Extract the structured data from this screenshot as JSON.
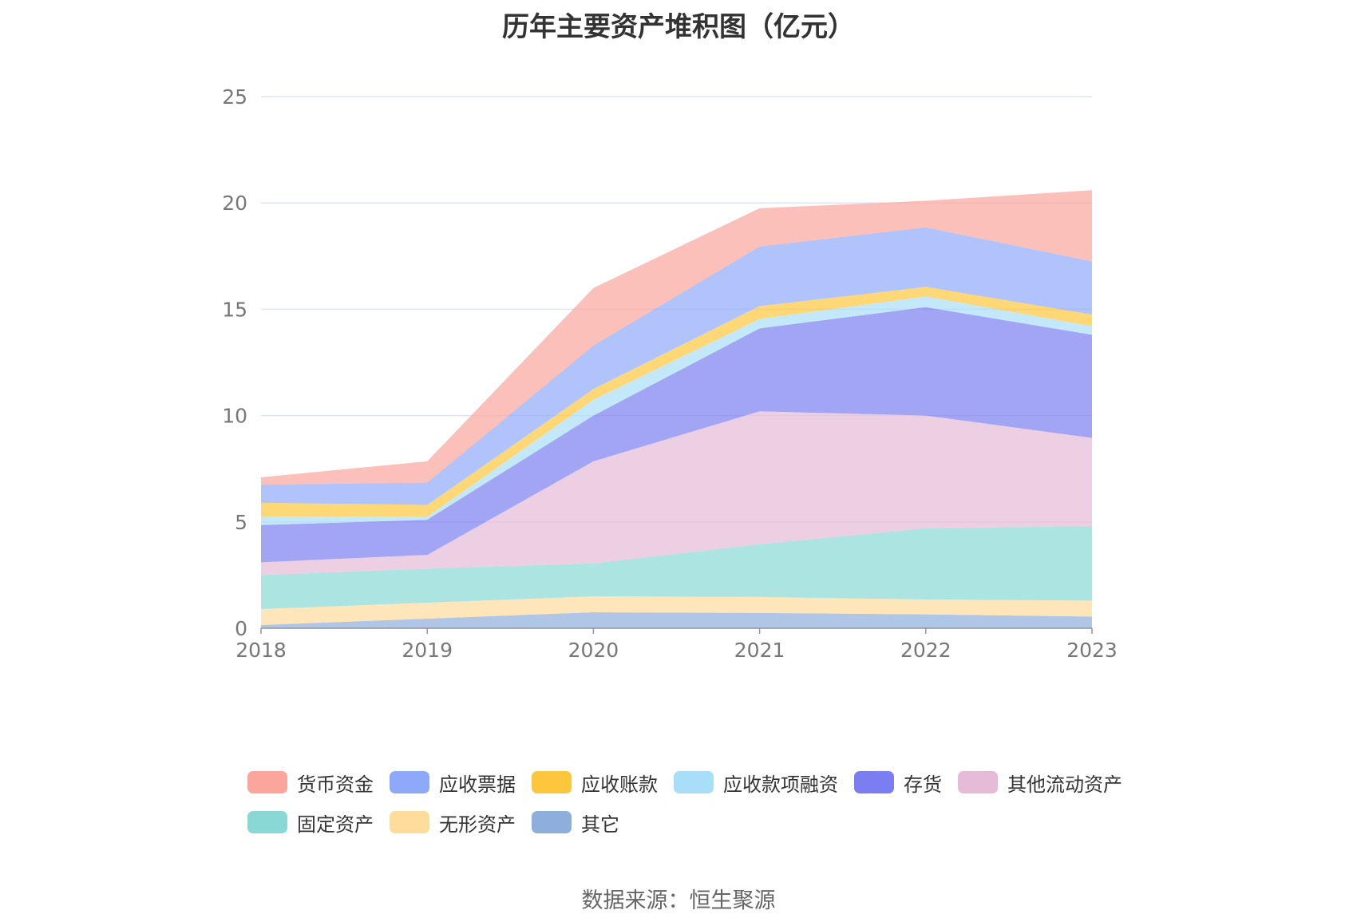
{
  "chart_data": {
    "type": "area",
    "stacked": true,
    "title": "历年主要资产堆积图（亿元）",
    "xlabel": "",
    "ylabel": "",
    "x": [
      "2018",
      "2019",
      "2020",
      "2021",
      "2022",
      "2023"
    ],
    "ylim": [
      0,
      25
    ],
    "yticks": [
      "0",
      "5",
      "10",
      "15",
      "20",
      "25"
    ],
    "grid": true,
    "legend_position": "bottom",
    "series": [
      {
        "name": "其它",
        "color": "#8eaedc",
        "values": [
          0.15,
          0.45,
          0.75,
          0.72,
          0.65,
          0.55
        ]
      },
      {
        "name": "无形资产",
        "color": "#fddc9c",
        "values": [
          0.75,
          0.75,
          0.75,
          0.75,
          0.7,
          0.75
        ]
      },
      {
        "name": "固定资产",
        "color": "#89d8d6",
        "values": [
          1.6,
          1.6,
          1.55,
          2.48,
          3.35,
          3.5
        ]
      },
      {
        "name": "其他流动资产",
        "color": "#e6bbd8",
        "values": [
          0.6,
          0.65,
          4.8,
          6.25,
          5.3,
          4.15
        ]
      },
      {
        "name": "存货",
        "color": "#7b7ef0",
        "values": [
          1.75,
          1.65,
          2.15,
          3.9,
          5.1,
          4.85
        ]
      },
      {
        "name": "应收款项融资",
        "color": "#a9def8",
        "values": [
          0.4,
          0.15,
          0.75,
          0.45,
          0.5,
          0.4
        ]
      },
      {
        "name": "应收账款",
        "color": "#fdc63c",
        "values": [
          0.65,
          0.55,
          0.5,
          0.6,
          0.45,
          0.55
        ]
      },
      {
        "name": "应收票据",
        "color": "#8ea9fa",
        "values": [
          0.85,
          1.05,
          2.05,
          2.8,
          2.8,
          2.5
        ]
      },
      {
        "name": "货币资金",
        "color": "#fba59d",
        "values": [
          0.35,
          1.0,
          2.7,
          1.8,
          1.25,
          3.35
        ]
      }
    ]
  },
  "legend": {
    "row1": [
      "货币资金",
      "应收票据",
      "应收账款",
      "应收款项融资",
      "存货",
      "其他流动资产"
    ],
    "row2": [
      "固定资产",
      "无形资产",
      "其它"
    ]
  },
  "source": "数据来源：恒生聚源"
}
